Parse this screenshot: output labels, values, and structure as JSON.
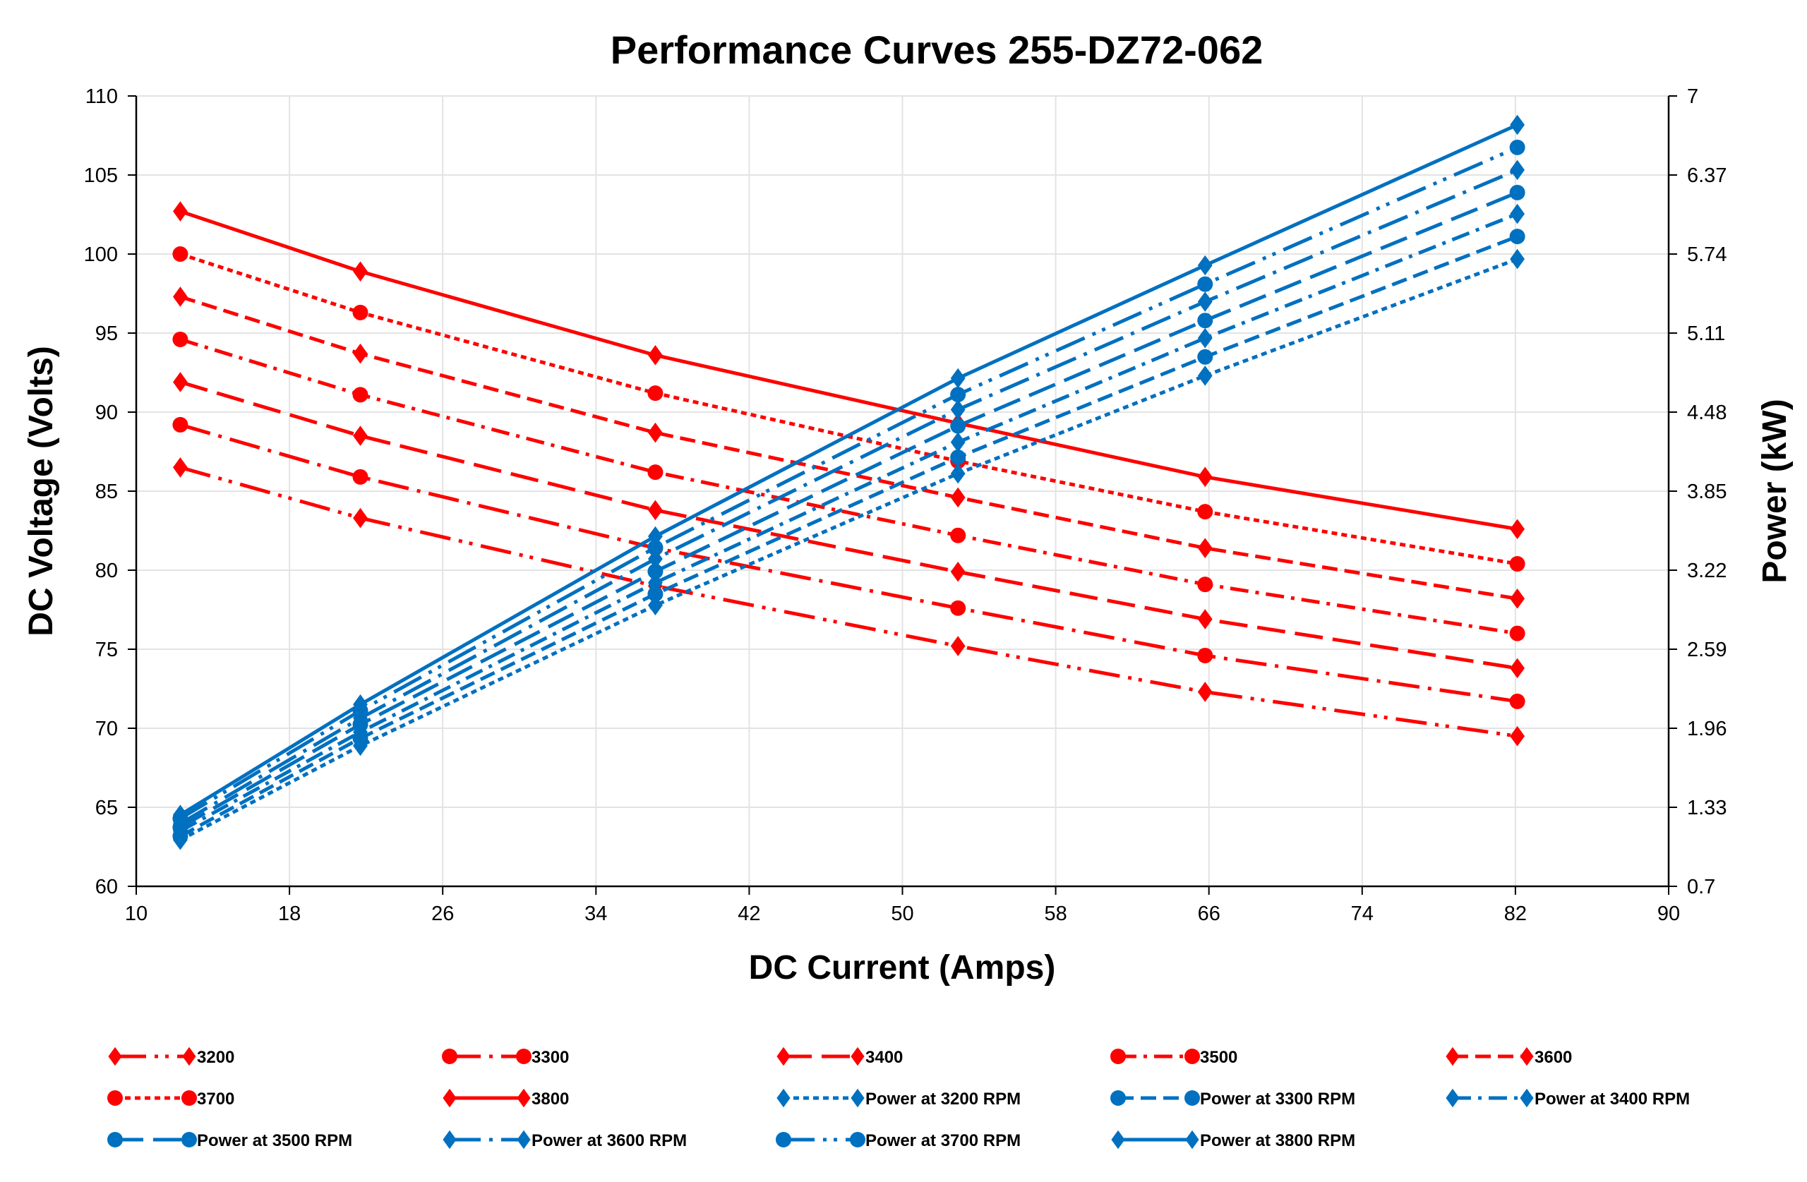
{
  "chart_data": {
    "type": "line",
    "title": "Performance Curves 255-DZ72-062",
    "xlabel": "DC Current (Amps)",
    "ylabel": "DC Voltage (Volts)",
    "y2label": "Power (kW)",
    "xlim": [
      10,
      90
    ],
    "ylim": [
      60,
      110
    ],
    "y2lim": [
      0.7,
      7
    ],
    "xticks": [
      "10",
      "18",
      "26",
      "34",
      "42",
      "50",
      "58",
      "66",
      "74",
      "82",
      "90"
    ],
    "yticks": [
      "60",
      "65",
      "70",
      "75",
      "80",
      "85",
      "90",
      "95",
      "100",
      "105",
      "110"
    ],
    "y2ticks": [
      "0.7",
      "1.33",
      "1.96",
      "2.59",
      "3.22",
      "3.85",
      "4.48",
      "5.11",
      "5.74",
      "6.37",
      "7"
    ],
    "grid": true,
    "legend_position": "bottom",
    "x": [
      12.3,
      21.7,
      37.1,
      52.9,
      65.8,
      82.1
    ],
    "colors": {
      "voltage": "#ff0000",
      "power": "#0070c0"
    },
    "series": [
      {
        "name": "3200",
        "axis": "left",
        "marker": "diamond",
        "dash": "ldd",
        "values": [
          86.5,
          83.3,
          79.0,
          75.2,
          72.3,
          69.5
        ]
      },
      {
        "name": "3300",
        "axis": "left",
        "marker": "circle",
        "dash": "ld",
        "values": [
          89.2,
          85.9,
          81.4,
          77.6,
          74.6,
          71.7
        ]
      },
      {
        "name": "3400",
        "axis": "left",
        "marker": "diamond",
        "dash": "long",
        "values": [
          91.9,
          88.5,
          83.8,
          79.9,
          76.9,
          73.8
        ]
      },
      {
        "name": "3500",
        "axis": "left",
        "marker": "circle",
        "dash": "dd",
        "values": [
          94.6,
          91.1,
          86.2,
          82.2,
          79.1,
          76.0
        ]
      },
      {
        "name": "3600",
        "axis": "left",
        "marker": "diamond",
        "dash": "dash",
        "values": [
          97.3,
          93.7,
          88.7,
          84.6,
          81.4,
          78.2
        ]
      },
      {
        "name": "3700",
        "axis": "left",
        "marker": "circle",
        "dash": "short",
        "values": [
          100.0,
          96.3,
          91.2,
          86.9,
          83.7,
          80.4
        ]
      },
      {
        "name": "3800",
        "axis": "left",
        "marker": "diamond",
        "dash": "solid",
        "values": [
          102.7,
          98.9,
          93.6,
          89.3,
          85.9,
          82.6
        ]
      },
      {
        "name": "Power at 3200 RPM",
        "axis": "right",
        "marker": "diamond",
        "dash": "short",
        "values": [
          1.07,
          1.82,
          2.94,
          3.99,
          4.77,
          5.7
        ]
      },
      {
        "name": "Power at 3300 RPM",
        "axis": "right",
        "marker": "circle",
        "dash": "dash",
        "values": [
          1.1,
          1.88,
          3.03,
          4.12,
          4.92,
          5.88
        ]
      },
      {
        "name": "Power at 3400 RPM",
        "axis": "right",
        "marker": "diamond",
        "dash": "dd",
        "values": [
          1.14,
          1.93,
          3.12,
          4.24,
          5.07,
          6.06
        ]
      },
      {
        "name": "Power at 3500 RPM",
        "axis": "right",
        "marker": "circle",
        "dash": "long",
        "values": [
          1.17,
          1.99,
          3.21,
          4.37,
          5.21,
          6.23
        ]
      },
      {
        "name": "Power at 3600 RPM",
        "axis": "right",
        "marker": "diamond",
        "dash": "ld",
        "values": [
          1.2,
          2.04,
          3.31,
          4.5,
          5.36,
          6.41
        ]
      },
      {
        "name": "Power at 3700 RPM",
        "axis": "right",
        "marker": "circle",
        "dash": "ldd",
        "values": [
          1.24,
          2.1,
          3.4,
          4.62,
          5.5,
          6.59
        ]
      },
      {
        "name": "Power at 3800 RPM",
        "axis": "right",
        "marker": "diamond",
        "dash": "solid",
        "values": [
          1.27,
          2.15,
          3.49,
          4.75,
          5.65,
          6.77
        ]
      }
    ]
  }
}
